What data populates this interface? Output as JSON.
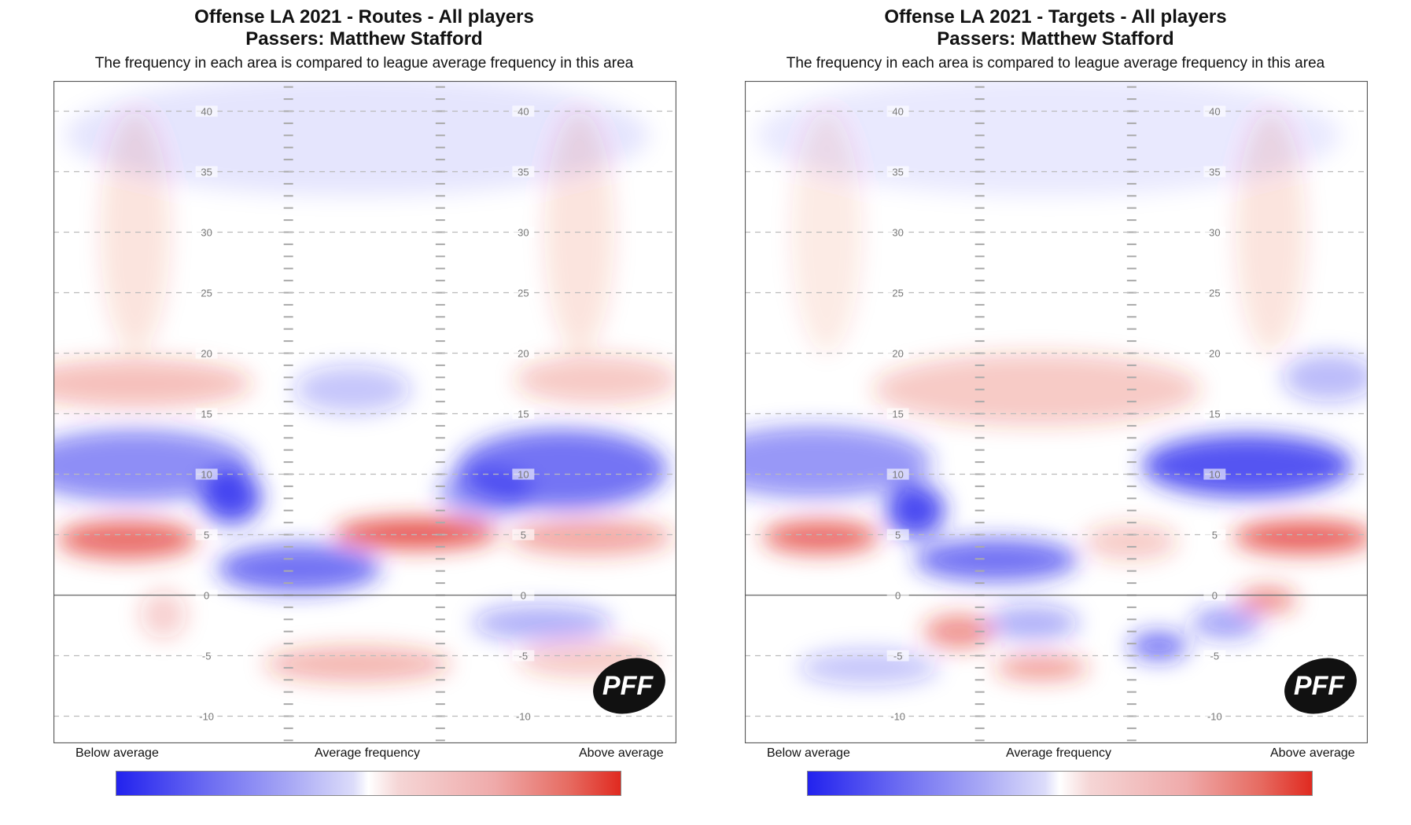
{
  "chart_data": [
    {
      "type": "heatmap",
      "title": "Offense LA 2021 - Routes - All players",
      "title2": "Passers: Matthew Stafford",
      "subtitle": "The frequency in each area is compared to league average frequency in this area",
      "yard_ticks": [
        40,
        35,
        30,
        25,
        20,
        15,
        10,
        5,
        0,
        -5,
        -10
      ],
      "ylim": [
        -12.3,
        42.5
      ],
      "grid": true,
      "legend": {
        "low": "Below average",
        "mid": "Average frequency",
        "high": "Above average"
      },
      "colors": {
        "low": "#2222ee",
        "mid": "#ffffff",
        "high": "#e02a20"
      },
      "logo": "PFF",
      "hotspots": [
        {
          "lat": 6.3,
          "yd": 4.6,
          "v": 0.8,
          "rx": 6,
          "ry": 1.6
        },
        {
          "lat": 31,
          "yd": 5.1,
          "v": 0.9,
          "rx": 7,
          "ry": 1.3
        },
        {
          "lat": 46,
          "yd": 4.8,
          "v": 0.5,
          "rx": 7,
          "ry": 1.5
        },
        {
          "lat": 15.2,
          "yd": 8.1,
          "v": -0.95,
          "rx": 2.6,
          "ry": 2.2
        },
        {
          "lat": 7,
          "yd": 10.7,
          "v": -0.6,
          "rx": 10,
          "ry": 3
        },
        {
          "lat": 43.5,
          "yd": 10.4,
          "v": -0.75,
          "rx": 9,
          "ry": 3.3
        },
        {
          "lat": 37,
          "yd": 8.5,
          "v": -0.55,
          "rx": 4,
          "ry": 2
        },
        {
          "lat": 21,
          "yd": 2.2,
          "v": -0.75,
          "rx": 7,
          "ry": 2
        },
        {
          "lat": 41.8,
          "yd": -2.3,
          "v": -0.4,
          "rx": 6,
          "ry": 1.5
        },
        {
          "lat": 26,
          "yd": -5.7,
          "v": 0.4,
          "rx": 8,
          "ry": 1.5
        },
        {
          "lat": 45.7,
          "yd": -5.3,
          "v": 0.3,
          "rx": 6,
          "ry": 1.5
        },
        {
          "lat": 7,
          "yd": 17.5,
          "v": 0.35,
          "rx": 10,
          "ry": 2
        },
        {
          "lat": 46.5,
          "yd": 17.8,
          "v": 0.3,
          "rx": 7,
          "ry": 2
        },
        {
          "lat": 25.6,
          "yd": 17,
          "v": -0.3,
          "rx": 5,
          "ry": 2
        },
        {
          "lat": 7,
          "yd": 30,
          "v": 0.15,
          "rx": 3,
          "ry": 10
        },
        {
          "lat": 45,
          "yd": 30,
          "v": 0.15,
          "rx": 3,
          "ry": 10
        },
        {
          "lat": 26,
          "yd": 38,
          "v": -0.12,
          "rx": 25,
          "ry": 5
        },
        {
          "lat": 9.4,
          "yd": -1.6,
          "v": 0.25,
          "rx": 2,
          "ry": 2
        }
      ]
    },
    {
      "type": "heatmap",
      "title": "Offense LA 2021 - Targets - All players",
      "title2": "Passers: Matthew Stafford",
      "subtitle": "The frequency in each area is compared to league average frequency in this area",
      "yard_ticks": [
        40,
        35,
        30,
        25,
        20,
        15,
        10,
        5,
        0,
        -5,
        -10
      ],
      "ylim": [
        -12.3,
        42.5
      ],
      "grid": true,
      "legend": {
        "low": "Below average",
        "mid": "Average frequency",
        "high": "Above average"
      },
      "colors": {
        "low": "#2222ee",
        "mid": "#ffffff",
        "high": "#e02a20"
      },
      "logo": "PFF",
      "hotspots": [
        {
          "lat": 6.5,
          "yd": 4.8,
          "v": 0.8,
          "rx": 5,
          "ry": 1.4
        },
        {
          "lat": 47.8,
          "yd": 4.8,
          "v": 0.85,
          "rx": 6,
          "ry": 1.4
        },
        {
          "lat": 14.6,
          "yd": 7,
          "v": -0.95,
          "rx": 2.5,
          "ry": 2.2
        },
        {
          "lat": 21.5,
          "yd": 2.9,
          "v": -0.75,
          "rx": 7,
          "ry": 1.8
        },
        {
          "lat": 6,
          "yd": 11,
          "v": -0.55,
          "rx": 10,
          "ry": 3
        },
        {
          "lat": 43,
          "yd": 10.7,
          "v": -0.9,
          "rx": 9,
          "ry": 2.6
        },
        {
          "lat": 18.3,
          "yd": -3,
          "v": 0.6,
          "rx": 3,
          "ry": 1.4
        },
        {
          "lat": 25.4,
          "yd": -6,
          "v": 0.55,
          "rx": 4,
          "ry": 1
        },
        {
          "lat": 35.4,
          "yd": -4.2,
          "v": -0.7,
          "rx": 2.5,
          "ry": 1.2
        },
        {
          "lat": 41.2,
          "yd": -2.3,
          "v": -0.5,
          "rx": 3,
          "ry": 1.3
        },
        {
          "lat": 44.7,
          "yd": -0.4,
          "v": 0.6,
          "rx": 2.5,
          "ry": 1.1
        },
        {
          "lat": 24.6,
          "yd": -2.3,
          "v": -0.4,
          "rx": 4,
          "ry": 1.5
        },
        {
          "lat": 25,
          "yd": 17,
          "v": 0.3,
          "rx": 14,
          "ry": 3
        },
        {
          "lat": 50,
          "yd": 18,
          "v": -0.35,
          "rx": 4,
          "ry": 2
        },
        {
          "lat": 33,
          "yd": 4.4,
          "v": 0.3,
          "rx": 4,
          "ry": 1.5
        },
        {
          "lat": 10.6,
          "yd": -6,
          "v": -0.3,
          "rx": 6,
          "ry": 1.5
        },
        {
          "lat": 7,
          "yd": 30,
          "v": 0.12,
          "rx": 3,
          "ry": 10
        },
        {
          "lat": 45,
          "yd": 30,
          "v": 0.15,
          "rx": 3,
          "ry": 10
        },
        {
          "lat": 26,
          "yd": 38,
          "v": -0.1,
          "rx": 25,
          "ry": 5
        }
      ]
    }
  ]
}
